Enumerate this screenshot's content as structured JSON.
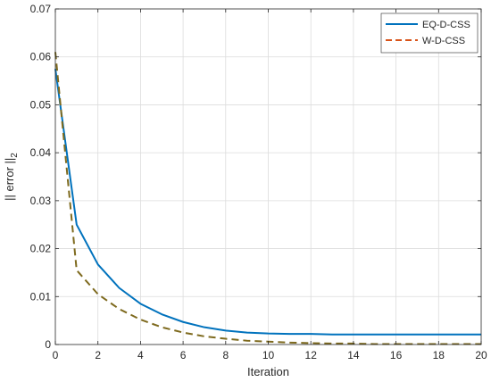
{
  "chart_data": {
    "type": "line",
    "title": "",
    "xlabel": "Iteration",
    "ylabel": "|| error ||",
    "ylabel_subscript": "2",
    "xlim": [
      0,
      20
    ],
    "ylim": [
      0,
      0.07
    ],
    "xticks": [
      "0",
      "2",
      "4",
      "6",
      "8",
      "10",
      "12",
      "14",
      "16",
      "18",
      "20"
    ],
    "yticks": [
      "0",
      "0.01",
      "0.02",
      "0.03",
      "0.04",
      "0.05",
      "0.06",
      "0.07"
    ],
    "grid": true,
    "legend_position": "top-right",
    "x": [
      0,
      1,
      2,
      3,
      4,
      5,
      6,
      7,
      8,
      9,
      10,
      11,
      12,
      13,
      14,
      15,
      16,
      17,
      18,
      19,
      20
    ],
    "series": [
      {
        "name": "EQ-D-CSS",
        "color": "#0072BD",
        "style": "solid",
        "values": [
          0.0575,
          0.025,
          0.0167,
          0.0118,
          0.0085,
          0.0063,
          0.0047,
          0.0036,
          0.0029,
          0.0025,
          0.0023,
          0.0022,
          0.0022,
          0.0021,
          0.0021,
          0.0021,
          0.0021,
          0.0021,
          0.0021,
          0.0021,
          0.0021
        ]
      },
      {
        "name": "W-D-CSS",
        "color": "#D95319",
        "overlap_color": "#7E6A1E",
        "style": "dashed",
        "values": [
          0.061,
          0.0155,
          0.0105,
          0.0074,
          0.0052,
          0.0036,
          0.0025,
          0.0017,
          0.0012,
          0.0008,
          0.0006,
          0.0004,
          0.0003,
          0.0002,
          0.0002,
          0.0001,
          0.0001,
          0.0001,
          0.0001,
          0.0001,
          0.0001
        ]
      }
    ]
  }
}
